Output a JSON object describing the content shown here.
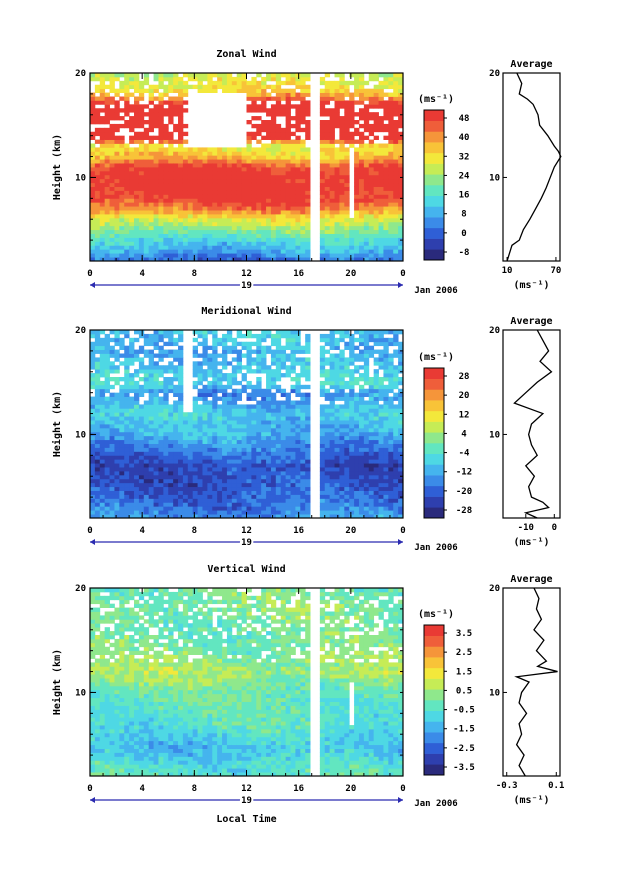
{
  "chart_data": [
    {
      "type": "heatmap",
      "title": "Zonal Wind",
      "ylabel": "Height (km)",
      "ylim": [
        2,
        20
      ],
      "yticks": [
        "20",
        "10"
      ],
      "xlim": [
        0,
        24
      ],
      "xticks": [
        "0",
        "4",
        "8",
        "12",
        "16",
        "20",
        "0"
      ],
      "day_label": "19",
      "date_label": "Jan 2006",
      "colorbar": {
        "unit": "(ms⁻¹)",
        "ticks": [
          "48",
          "40",
          "32",
          "24",
          "16",
          "8",
          "0",
          "-8"
        ],
        "range": [
          -12,
          52
        ]
      },
      "fill_profile": {
        "heights_km": [
          2,
          3,
          4,
          5,
          6,
          7,
          8,
          9,
          10,
          11,
          12,
          13,
          14,
          15,
          16,
          17,
          18,
          19,
          20
        ],
        "values": [
          0,
          8,
          14,
          22,
          30,
          42,
          50,
          52,
          52,
          48,
          36,
          30,
          56,
          56,
          56,
          52,
          36,
          30,
          28
        ]
      },
      "gaps": [
        {
          "t_start": 17.0,
          "t_end": 17.6,
          "h_start": 2,
          "h_end": 20
        },
        {
          "t_start": 19.8,
          "t_end": 20.1,
          "h_start": 6,
          "h_end": 13
        },
        {
          "t_start": 7.5,
          "t_end": 12.0,
          "h_start": 13,
          "h_end": 18
        }
      ],
      "average_profile": {
        "title": "Average",
        "xticks": [
          "10",
          "70"
        ],
        "xlim": [
          5,
          75
        ],
        "unit": "(ms⁻¹)",
        "heights_km": [
          2,
          2.5,
          3,
          3.5,
          4,
          5,
          6,
          7,
          8,
          9,
          10,
          11,
          12,
          12.5,
          13,
          14,
          15,
          16,
          17,
          17.5,
          18,
          19,
          20
        ],
        "values": [
          10,
          12,
          14,
          16,
          25,
          30,
          38,
          45,
          52,
          58,
          63,
          68,
          76,
          73,
          68,
          60,
          50,
          48,
          42,
          35,
          25,
          28,
          22
        ]
      }
    },
    {
      "type": "heatmap",
      "title": "Meridional Wind",
      "ylabel": "Height (km)",
      "ylim": [
        2,
        20
      ],
      "yticks": [
        "20",
        "10"
      ],
      "xlim": [
        0,
        24
      ],
      "xticks": [
        "0",
        "4",
        "8",
        "12",
        "16",
        "20",
        "0"
      ],
      "day_label": "19",
      "date_label": "Jan 2006",
      "colorbar": {
        "unit": "(ms⁻¹)",
        "ticks": [
          "28",
          "20",
          "12",
          "4",
          "-4",
          "-12",
          "-20",
          "-28"
        ],
        "range": [
          -32,
          32
        ]
      },
      "fill_profile": {
        "heights_km": [
          2,
          3,
          4,
          5,
          6,
          7,
          8,
          9,
          10,
          11,
          12,
          13,
          14,
          15,
          16,
          17,
          18,
          19,
          20
        ],
        "values": [
          -14,
          -18,
          -20,
          -22,
          -22,
          -24,
          -20,
          -16,
          -12,
          -10,
          -8,
          -12,
          -16,
          -6,
          -8,
          -10,
          -12,
          -10,
          -8
        ]
      },
      "gaps": [
        {
          "t_start": 17.0,
          "t_end": 17.6,
          "h_start": 2,
          "h_end": 20
        },
        {
          "t_start": 7.0,
          "t_end": 8.0,
          "h_start": 12,
          "h_end": 20
        }
      ],
      "average_profile": {
        "title": "Average",
        "xticks": [
          "-10",
          "0"
        ],
        "xlim": [
          -18,
          2
        ],
        "unit": "(ms⁻¹)",
        "heights_km": [
          2,
          2.5,
          3,
          3.5,
          4,
          5,
          6,
          7,
          8,
          9,
          10,
          11,
          12,
          13,
          14,
          15,
          16,
          17,
          18,
          19,
          20
        ],
        "values": [
          -6,
          -10,
          -2,
          -4,
          -8,
          -9,
          -7,
          -10,
          -6,
          -8,
          -9,
          -8,
          -4,
          -14,
          -10,
          -6,
          -1,
          -5,
          -2,
          -4,
          -6
        ]
      }
    },
    {
      "type": "heatmap",
      "title": "Vertical Wind",
      "ylabel": "Height (km)",
      "ylim": [
        2,
        20
      ],
      "yticks": [
        "20",
        "10"
      ],
      "xlim": [
        0,
        24
      ],
      "xticks": [
        "0",
        "4",
        "8",
        "12",
        "16",
        "20",
        "0"
      ],
      "xlabel": "Local Time",
      "day_label": "19",
      "date_label": "Jan 2006",
      "colorbar": {
        "unit": "(ms⁻¹)",
        "ticks": [
          "3.5",
          "2.5",
          "1.5",
          "0.5",
          "-0.5",
          "-1.5",
          "-2.5",
          "-3.5"
        ],
        "range": [
          -4,
          4
        ]
      },
      "fill_profile": {
        "heights_km": [
          2,
          3,
          4,
          5,
          6,
          7,
          8,
          9,
          10,
          11,
          12,
          13,
          14,
          15,
          16,
          17,
          18,
          19,
          20
        ],
        "values": [
          -0.4,
          -0.6,
          -1.0,
          -1.2,
          -0.8,
          -0.5,
          -0.4,
          -0.3,
          -0.2,
          0.2,
          0.6,
          0.3,
          0.1,
          0.0,
          -0.1,
          0.0,
          0.2,
          0.1,
          0.0
        ]
      },
      "gaps": [
        {
          "t_start": 17.0,
          "t_end": 17.6,
          "h_start": 2,
          "h_end": 20
        },
        {
          "t_start": 19.9,
          "t_end": 20.2,
          "h_start": 7,
          "h_end": 11
        }
      ],
      "average_profile": {
        "title": "Average",
        "xticks": [
          "-0.3",
          "0.1"
        ],
        "xlim": [
          -0.33,
          0.13
        ],
        "unit": "(ms⁻¹)",
        "heights_km": [
          2,
          3,
          4,
          5,
          6,
          7,
          8,
          9,
          10,
          11,
          11.5,
          12,
          12.5,
          13,
          14,
          15,
          16,
          17,
          18,
          19,
          20
        ],
        "values": [
          -0.15,
          -0.2,
          -0.16,
          -0.22,
          -0.18,
          -0.2,
          -0.14,
          -0.2,
          -0.18,
          -0.12,
          -0.22,
          0.11,
          -0.05,
          0.02,
          -0.06,
          0.0,
          -0.08,
          -0.02,
          -0.06,
          -0.04,
          -0.08
        ]
      }
    }
  ]
}
